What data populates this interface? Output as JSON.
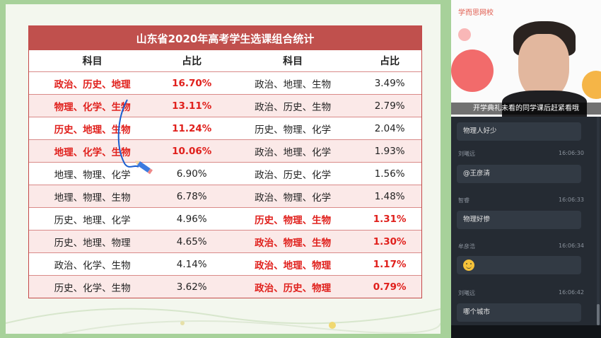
{
  "table": {
    "title": "山东省2020年高考学生选课组合统计",
    "headers": [
      "科目",
      "占比",
      "科目",
      "占比"
    ],
    "rows": [
      {
        "s1": "政治、历史、地理",
        "p1": "16.70%",
        "s2": "政治、地理、生物",
        "p2": "3.49%",
        "left_hl": true,
        "right_hl": false
      },
      {
        "s1": "物理、化学、生物",
        "p1": "13.11%",
        "s2": "政治、历史、生物",
        "p2": "2.79%",
        "left_hl": true,
        "right_hl": false
      },
      {
        "s1": "历史、地理、生物",
        "p1": "11.24%",
        "s2": "历史、物理、化学",
        "p2": "2.04%",
        "left_hl": true,
        "right_hl": false
      },
      {
        "s1": "地理、化学、生物",
        "p1": "10.06%",
        "s2": "政治、地理、化学",
        "p2": "1.93%",
        "left_hl": true,
        "right_hl": false
      },
      {
        "s1": "地理、物理、化学",
        "p1": "6.90%",
        "s2": "政治、历史、化学",
        "p2": "1.56%",
        "left_hl": false,
        "right_hl": false
      },
      {
        "s1": "地理、物理、生物",
        "p1": "6.78%",
        "s2": "政治、物理、化学",
        "p2": "1.48%",
        "left_hl": false,
        "right_hl": false
      },
      {
        "s1": "历史、地理、化学",
        "p1": "4.96%",
        "s2": "历史、物理、生物",
        "p2": "1.31%",
        "left_hl": false,
        "right_hl": true
      },
      {
        "s1": "历史、地理、物理",
        "p1": "4.65%",
        "s2": "政治、物理、生物",
        "p2": "1.30%",
        "left_hl": false,
        "right_hl": true
      },
      {
        "s1": "政治、化学、生物",
        "p1": "4.14%",
        "s2": "政治、地理、物理",
        "p2": "1.17%",
        "left_hl": false,
        "right_hl": true
      },
      {
        "s1": "历史、化学、生物",
        "p1": "3.62%",
        "s2": "政治、历史、物理",
        "p2": "0.79%",
        "left_hl": false,
        "right_hl": true
      }
    ]
  },
  "video": {
    "brand": "学而思网校",
    "caption": "开学典礼未看的同学课后赶紧看哦"
  },
  "chat": {
    "messages": [
      {
        "name": "",
        "time": "",
        "text": "物理人好少",
        "emoji": false
      },
      {
        "name": "刘曦远",
        "time": "16:06:30",
        "text": "@王彦清",
        "emoji": false
      },
      {
        "name": "智睿",
        "time": "16:06:33",
        "text": "物理好惨",
        "emoji": false
      },
      {
        "name": "牟彦浩",
        "time": "16:06:34",
        "text": "",
        "emoji": true
      },
      {
        "name": "刘曦远",
        "time": "16:06:42",
        "text": "哪个城市",
        "emoji": false
      }
    ]
  },
  "colors": {
    "table_header": "#c0504d",
    "highlight_text": "#e0201c",
    "slide_bg": "#a7d19a",
    "chat_bg": "#252b33"
  }
}
